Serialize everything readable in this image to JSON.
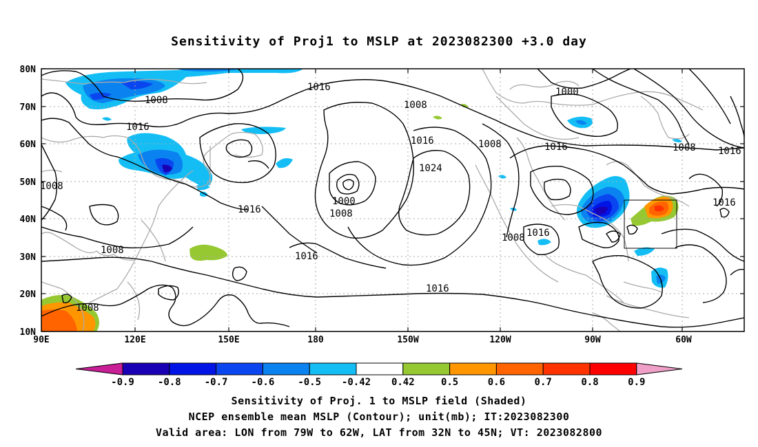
{
  "title": "Sensitivity of Proj1 to MSLP at 2023082300 +3.0 day",
  "map": {
    "lat_labels": [
      "80N",
      "70N",
      "60N",
      "50N",
      "40N",
      "30N",
      "20N",
      "10N"
    ],
    "lon_labels": [
      "90E",
      "120E",
      "150E",
      "180",
      "150W",
      "120W",
      "90W",
      "60W"
    ],
    "contour_labels": [
      {
        "text": "1016"
      },
      {
        "text": "1008"
      },
      {
        "text": "1000"
      },
      {
        "text": "1016"
      },
      {
        "text": "1008"
      },
      {
        "text": "1016"
      },
      {
        "text": "1024"
      },
      {
        "text": "1008"
      },
      {
        "text": "1016"
      },
      {
        "text": "1008"
      },
      {
        "text": "1016"
      },
      {
        "text": "1008"
      },
      {
        "text": "1000"
      },
      {
        "text": "1008"
      },
      {
        "text": "1016"
      },
      {
        "text": "1016"
      },
      {
        "text": "1008"
      },
      {
        "text": "1016"
      },
      {
        "text": "1008"
      },
      {
        "text": "1016"
      },
      {
        "text": "1016"
      }
    ]
  },
  "colorbar": {
    "labels": [
      "-0.9",
      "-0.8",
      "-0.7",
      "-0.6",
      "-0.5",
      "-0.42",
      "0.42",
      "0.5",
      "0.6",
      "0.7",
      "0.8",
      "0.9"
    ],
    "colors": [
      "#1a00b4",
      "#0014e6",
      "#0a46f0",
      "#0a82f0",
      "#14bef5",
      "#ffffff",
      "#96c832",
      "#ff9600",
      "#ff6400",
      "#ff3200",
      "#ff0000"
    ],
    "low_cap_color": "#c81e96",
    "high_cap_color": "#f0a0c8"
  },
  "captions": {
    "line1": "Sensitivity of Proj. 1 to MSLP field (Shaded)",
    "line2": "NCEP ensemble mean MSLP (Contour); unit(mb); IT:2023082300",
    "line3": "Valid area: LON from 79W to 62W, LAT from 32N to 45N; VT: 2023082800"
  }
}
